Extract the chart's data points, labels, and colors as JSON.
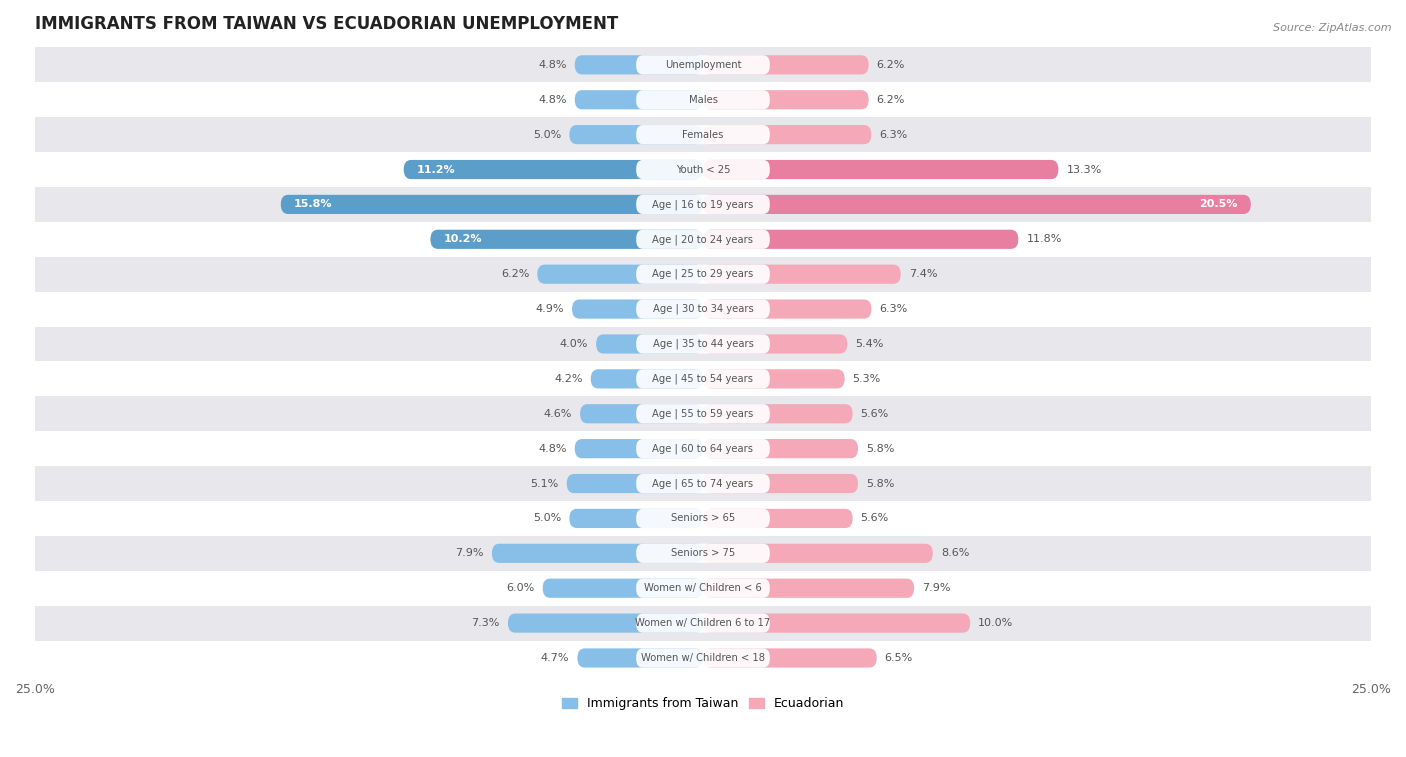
{
  "title": "IMMIGRANTS FROM TAIWAN VS ECUADORIAN UNEMPLOYMENT",
  "source": "Source: ZipAtlas.com",
  "categories": [
    "Unemployment",
    "Males",
    "Females",
    "Youth < 25",
    "Age | 16 to 19 years",
    "Age | 20 to 24 years",
    "Age | 25 to 29 years",
    "Age | 30 to 34 years",
    "Age | 35 to 44 years",
    "Age | 45 to 54 years",
    "Age | 55 to 59 years",
    "Age | 60 to 64 years",
    "Age | 65 to 74 years",
    "Seniors > 65",
    "Seniors > 75",
    "Women w/ Children < 6",
    "Women w/ Children 6 to 17",
    "Women w/ Children < 18"
  ],
  "taiwan_values": [
    4.8,
    4.8,
    5.0,
    11.2,
    15.8,
    10.2,
    6.2,
    4.9,
    4.0,
    4.2,
    4.6,
    4.8,
    5.1,
    5.0,
    7.9,
    6.0,
    7.3,
    4.7
  ],
  "ecuador_values": [
    6.2,
    6.2,
    6.3,
    13.3,
    20.5,
    11.8,
    7.4,
    6.3,
    5.4,
    5.3,
    5.6,
    5.8,
    5.8,
    5.6,
    8.6,
    7.9,
    10.0,
    6.5
  ],
  "taiwan_color": "#88bfe8",
  "ecuador_color": "#f4a8b8",
  "taiwan_highlight_color": "#5b9ec9",
  "ecuador_highlight_color": "#e87fa0",
  "highlight_rows": [
    3,
    4,
    5
  ],
  "xlim": 25.0,
  "fig_bg": "#ffffff",
  "row_bg_light": "#ffffff",
  "row_bg_dark": "#e8e8ec",
  "label_bg": "#ffffff",
  "value_color": "#555555",
  "label_color": "#555555",
  "title_color": "#222222",
  "source_color": "#888888",
  "legend_taiwan": "Immigrants from Taiwan",
  "legend_ecuador": "Ecuadorian"
}
